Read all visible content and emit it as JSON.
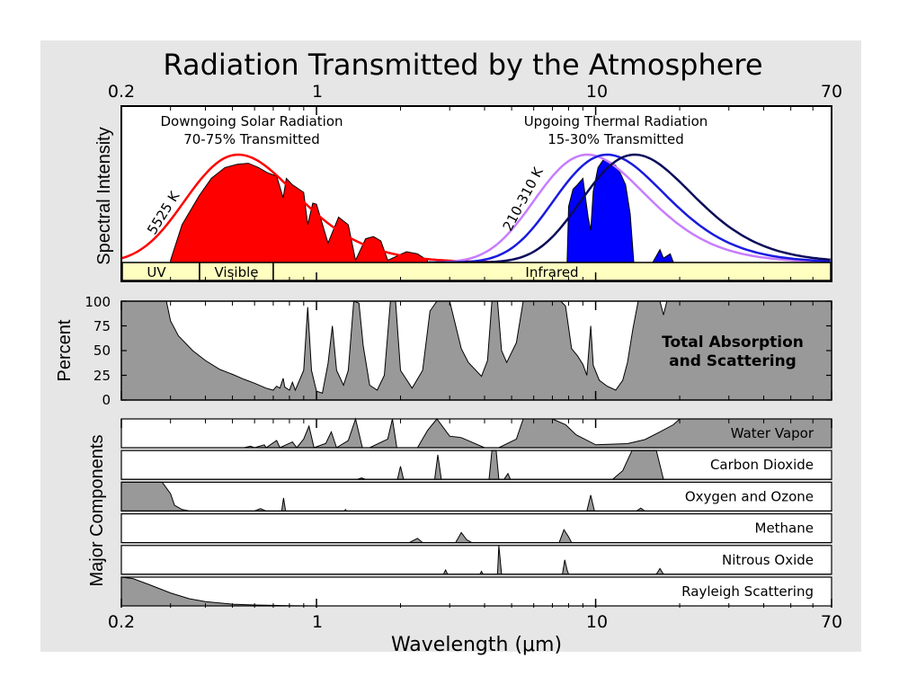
{
  "title": "Radiation Transmitted by the Atmosphere",
  "colors": {
    "frame_bg": "#e6e6e6",
    "solar": "#ff0000",
    "thermal_fill": "#0000ff",
    "thermal_curve_1": "#c77dff",
    "thermal_curve_2": "#1a1adf",
    "thermal_curve_3": "#0b0b5c",
    "band_fill": "#ffffc0",
    "absorption_fill": "#999999"
  },
  "chart_data": [
    {
      "type": "area",
      "name_panel": "spectral",
      "ylabel": "Spectral Intensity",
      "x_scale": "log",
      "xlim": [
        0.2,
        70
      ],
      "x_ticks_top": [
        "0.2",
        "1",
        "10",
        "70"
      ],
      "solar": {
        "title_line1": "Downgoing Solar Radiation",
        "title_line2": "70-75% Transmitted",
        "curve_label": "5525 K",
        "blackbody_peak_um": 0.525,
        "transmitted_points": [
          [
            0.3,
            0.02
          ],
          [
            0.33,
            0.35
          ],
          [
            0.38,
            0.62
          ],
          [
            0.42,
            0.78
          ],
          [
            0.47,
            0.88
          ],
          [
            0.52,
            0.91
          ],
          [
            0.57,
            0.92
          ],
          [
            0.62,
            0.88
          ],
          [
            0.67,
            0.83
          ],
          [
            0.72,
            0.8
          ],
          [
            0.76,
            0.6
          ],
          [
            0.78,
            0.78
          ],
          [
            0.82,
            0.72
          ],
          [
            0.9,
            0.65
          ],
          [
            0.93,
            0.35
          ],
          [
            0.97,
            0.55
          ],
          [
            1.0,
            0.54
          ],
          [
            1.1,
            0.18
          ],
          [
            1.2,
            0.42
          ],
          [
            1.3,
            0.35
          ],
          [
            1.38,
            0.02
          ],
          [
            1.5,
            0.22
          ],
          [
            1.6,
            0.24
          ],
          [
            1.7,
            0.2
          ],
          [
            1.8,
            0.02
          ],
          [
            2.1,
            0.1
          ],
          [
            2.3,
            0.08
          ],
          [
            2.5,
            0.02
          ]
        ]
      },
      "thermal": {
        "title_line1": "Upgoing Thermal Radiation",
        "title_line2": "15-30% Transmitted",
        "curve_label": "210-310 K",
        "blackbody_peaks_um": [
          9.35,
          11.0,
          13.8
        ],
        "transmitted_points": [
          [
            7.9,
            0.0
          ],
          [
            8.0,
            0.52
          ],
          [
            8.3,
            0.68
          ],
          [
            8.6,
            0.72
          ],
          [
            9.0,
            0.78
          ],
          [
            9.4,
            0.42
          ],
          [
            9.6,
            0.3
          ],
          [
            9.8,
            0.66
          ],
          [
            10.2,
            0.88
          ],
          [
            10.7,
            0.96
          ],
          [
            11.3,
            0.93
          ],
          [
            11.8,
            0.9
          ],
          [
            12.3,
            0.82
          ],
          [
            12.8,
            0.72
          ],
          [
            13.3,
            0.45
          ],
          [
            13.7,
            0.0
          ],
          [
            16.0,
            0.0
          ],
          [
            16.5,
            0.06
          ],
          [
            17.0,
            0.12
          ],
          [
            17.5,
            0.04
          ],
          [
            18.5,
            0.08
          ],
          [
            19.0,
            0.0
          ]
        ]
      },
      "bands": [
        {
          "label": "UV",
          "from": 0.2,
          "to": 0.4
        },
        {
          "label": "Visible",
          "from": 0.4,
          "to": 0.7
        },
        {
          "label": "Infrared",
          "from": 0.7,
          "to": 70
        }
      ]
    },
    {
      "type": "area",
      "name_panel": "total",
      "ylabel": "Percent",
      "annotation_line1": "Total Absorption",
      "annotation_line2": "and Scattering",
      "ylim": [
        0,
        100
      ],
      "y_ticks": [
        "0",
        "25",
        "50",
        "75",
        "100"
      ],
      "points": [
        [
          0.2,
          100
        ],
        [
          0.29,
          100
        ],
        [
          0.3,
          80
        ],
        [
          0.32,
          65
        ],
        [
          0.36,
          50
        ],
        [
          0.4,
          40
        ],
        [
          0.45,
          31
        ],
        [
          0.5,
          26
        ],
        [
          0.55,
          21
        ],
        [
          0.6,
          17
        ],
        [
          0.66,
          12
        ],
        [
          0.7,
          10
        ],
        [
          0.72,
          14
        ],
        [
          0.74,
          12
        ],
        [
          0.76,
          22
        ],
        [
          0.77,
          13
        ],
        [
          0.8,
          10
        ],
        [
          0.82,
          18
        ],
        [
          0.84,
          10
        ],
        [
          0.9,
          30
        ],
        [
          0.93,
          94
        ],
        [
          0.96,
          30
        ],
        [
          1.0,
          9
        ],
        [
          1.05,
          7
        ],
        [
          1.1,
          37
        ],
        [
          1.14,
          75
        ],
        [
          1.18,
          30
        ],
        [
          1.25,
          15
        ],
        [
          1.3,
          30
        ],
        [
          1.36,
          100
        ],
        [
          1.42,
          98
        ],
        [
          1.47,
          55
        ],
        [
          1.55,
          15
        ],
        [
          1.65,
          10
        ],
        [
          1.75,
          25
        ],
        [
          1.84,
          100
        ],
        [
          1.92,
          100
        ],
        [
          2.0,
          30
        ],
        [
          2.2,
          12
        ],
        [
          2.4,
          30
        ],
        [
          2.55,
          90
        ],
        [
          2.7,
          100
        ],
        [
          3.0,
          100
        ],
        [
          3.3,
          52
        ],
        [
          3.5,
          38
        ],
        [
          3.9,
          24
        ],
        [
          4.1,
          40
        ],
        [
          4.25,
          100
        ],
        [
          4.45,
          100
        ],
        [
          4.6,
          50
        ],
        [
          4.8,
          38
        ],
        [
          5.2,
          58
        ],
        [
          5.5,
          100
        ],
        [
          7.5,
          100
        ],
        [
          7.8,
          95
        ],
        [
          8.2,
          52
        ],
        [
          8.6,
          45
        ],
        [
          9.0,
          36
        ],
        [
          9.3,
          25
        ],
        [
          9.6,
          75
        ],
        [
          9.8,
          35
        ],
        [
          10.3,
          20
        ],
        [
          11.0,
          14
        ],
        [
          11.8,
          10
        ],
        [
          12.5,
          20
        ],
        [
          13.0,
          38
        ],
        [
          13.6,
          72
        ],
        [
          14.2,
          100
        ],
        [
          17.0,
          100
        ],
        [
          17.5,
          86
        ],
        [
          18.0,
          100
        ],
        [
          70,
          100
        ]
      ]
    },
    {
      "type": "area",
      "name_panel": "components",
      "ylabel": "Major Components",
      "x_ticks_bottom": [
        "0.2",
        "1",
        "10",
        "70"
      ],
      "xlabel": "Wavelength (μm)",
      "series": [
        {
          "name": "Water Vapor",
          "points": [
            [
              0.2,
              0
            ],
            [
              0.55,
              0
            ],
            [
              0.58,
              5
            ],
            [
              0.6,
              0
            ],
            [
              0.65,
              10
            ],
            [
              0.66,
              0
            ],
            [
              0.72,
              25
            ],
            [
              0.74,
              0
            ],
            [
              0.82,
              20
            ],
            [
              0.85,
              0
            ],
            [
              0.9,
              30
            ],
            [
              0.94,
              75
            ],
            [
              0.98,
              0
            ],
            [
              1.08,
              15
            ],
            [
              1.13,
              55
            ],
            [
              1.18,
              0
            ],
            [
              1.3,
              25
            ],
            [
              1.38,
              100
            ],
            [
              1.46,
              0
            ],
            [
              1.55,
              0
            ],
            [
              1.8,
              30
            ],
            [
              1.87,
              100
            ],
            [
              1.94,
              0
            ],
            [
              2.3,
              0
            ],
            [
              2.5,
              60
            ],
            [
              2.7,
              100
            ],
            [
              3.0,
              40
            ],
            [
              3.3,
              35
            ],
            [
              4.0,
              0
            ],
            [
              4.5,
              0
            ],
            [
              5.2,
              30
            ],
            [
              5.5,
              100
            ],
            [
              7.0,
              100
            ],
            [
              7.8,
              80
            ],
            [
              8.5,
              45
            ],
            [
              10.0,
              10
            ],
            [
              13,
              14
            ],
            [
              15,
              28
            ],
            [
              17,
              55
            ],
            [
              19,
              80
            ],
            [
              20,
              100
            ],
            [
              70,
              100
            ]
          ]
        },
        {
          "name": "Carbon Dioxide",
          "points": [
            [
              0.2,
              0
            ],
            [
              1.4,
              0
            ],
            [
              1.45,
              5
            ],
            [
              1.5,
              0
            ],
            [
              1.95,
              0
            ],
            [
              2.0,
              45
            ],
            [
              2.05,
              0
            ],
            [
              2.65,
              0
            ],
            [
              2.72,
              85
            ],
            [
              2.8,
              0
            ],
            [
              4.15,
              0
            ],
            [
              4.25,
              100
            ],
            [
              4.4,
              100
            ],
            [
              4.5,
              0
            ],
            [
              4.7,
              0
            ],
            [
              4.85,
              20
            ],
            [
              4.95,
              0
            ],
            [
              11.5,
              0
            ],
            [
              12.5,
              30
            ],
            [
              13.5,
              100
            ],
            [
              16.5,
              100
            ],
            [
              17.5,
              0
            ],
            [
              70,
              0
            ]
          ]
        },
        {
          "name": "Oxygen and Ozone",
          "points": [
            [
              0.2,
              100
            ],
            [
              0.28,
              100
            ],
            [
              0.3,
              60
            ],
            [
              0.31,
              20
            ],
            [
              0.33,
              5
            ],
            [
              0.35,
              0
            ],
            [
              0.6,
              0
            ],
            [
              0.63,
              8
            ],
            [
              0.66,
              0
            ],
            [
              0.75,
              0
            ],
            [
              0.762,
              45
            ],
            [
              0.775,
              0
            ],
            [
              1.26,
              0
            ],
            [
              1.27,
              5
            ],
            [
              1.28,
              0
            ],
            [
              9.3,
              0
            ],
            [
              9.6,
              55
            ],
            [
              9.9,
              0
            ],
            [
              14,
              0
            ],
            [
              14.5,
              10
            ],
            [
              15,
              0
            ],
            [
              70,
              0
            ]
          ]
        },
        {
          "name": "Methane",
          "points": [
            [
              0.2,
              0
            ],
            [
              2.15,
              0
            ],
            [
              2.3,
              15
            ],
            [
              2.4,
              0
            ],
            [
              3.15,
              0
            ],
            [
              3.3,
              35
            ],
            [
              3.45,
              10
            ],
            [
              3.6,
              0
            ],
            [
              7.4,
              0
            ],
            [
              7.7,
              45
            ],
            [
              8.0,
              20
            ],
            [
              8.2,
              0
            ],
            [
              70,
              0
            ]
          ]
        },
        {
          "name": "Nitrous Oxide",
          "points": [
            [
              0.2,
              0
            ],
            [
              2.85,
              0
            ],
            [
              2.9,
              15
            ],
            [
              2.95,
              0
            ],
            [
              3.85,
              0
            ],
            [
              3.9,
              10
            ],
            [
              3.95,
              0
            ],
            [
              4.45,
              0
            ],
            [
              4.5,
              100
            ],
            [
              4.6,
              0
            ],
            [
              7.6,
              0
            ],
            [
              7.75,
              50
            ],
            [
              7.9,
              15
            ],
            [
              8.0,
              0
            ],
            [
              16.5,
              0
            ],
            [
              17,
              20
            ],
            [
              17.5,
              0
            ],
            [
              70,
              0
            ]
          ]
        },
        {
          "name": "Rayleigh Scattering",
          "points": [
            [
              0.2,
              100
            ],
            [
              0.22,
              95
            ],
            [
              0.25,
              75
            ],
            [
              0.3,
              45
            ],
            [
              0.35,
              25
            ],
            [
              0.4,
              15
            ],
            [
              0.5,
              6
            ],
            [
              0.6,
              3
            ],
            [
              0.8,
              1
            ],
            [
              1.0,
              0
            ],
            [
              70,
              0
            ]
          ]
        }
      ]
    }
  ]
}
